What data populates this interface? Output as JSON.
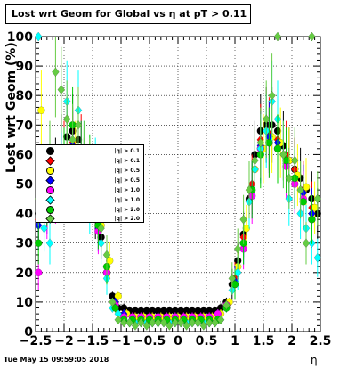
{
  "chart_data": {
    "type": "scatter",
    "title": "Lost wrt Geom for Global vs  η at pT > 0.11",
    "xlabel": "η",
    "ylabel": "Lost wrt Geom (%)",
    "xlim": [
      -2.5,
      2.5
    ],
    "ylim": [
      0,
      100
    ],
    "x_ticks": [
      "−2.5",
      "−2",
      "−1.5",
      "−1",
      "−0.5",
      "0",
      "0.5",
      "1",
      "1.5",
      "2",
      "2.5"
    ],
    "y_ticks": [
      "0",
      "10",
      "20",
      "30",
      "40",
      "50",
      "60",
      "70",
      "80",
      "90",
      "100"
    ],
    "grid": true,
    "legend_position": "left-middle",
    "series": [
      {
        "name": "|q| > 0.1",
        "color": "#000000",
        "x": [
          -2.45,
          -2.35,
          -2.25,
          -2.15,
          -2.05,
          -1.95,
          -1.85,
          -1.75,
          -1.65,
          -1.55,
          -1.45,
          -1.35,
          -1.25,
          -1.15,
          -1.05,
          -0.95,
          -0.85,
          -0.75,
          -0.65,
          -0.55,
          -0.45,
          -0.35,
          -0.25,
          -0.15,
          -0.05,
          0.05,
          0.15,
          0.25,
          0.35,
          0.45,
          0.55,
          0.65,
          0.75,
          0.85,
          0.95,
          1.05,
          1.15,
          1.25,
          1.35,
          1.45,
          1.55,
          1.65,
          1.75,
          1.85,
          1.95,
          2.05,
          2.15,
          2.25,
          2.35,
          2.45
        ],
        "y": [
          40,
          45,
          50,
          55,
          62,
          66,
          68,
          65,
          55,
          48,
          40,
          32,
          20,
          12,
          8,
          8,
          7,
          7,
          7,
          7,
          7,
          7,
          7,
          7,
          7,
          7,
          7,
          7,
          7,
          7,
          7,
          7,
          8,
          10,
          16,
          24,
          33,
          45,
          60,
          68,
          70,
          70,
          68,
          63,
          58,
          55,
          52,
          48,
          45,
          40
        ]
      },
      {
        "name": "|q| > 0.1",
        "color": "#ff0000",
        "x": [
          -2.45,
          -2.3,
          -2.15,
          -2.0,
          -1.85,
          -1.7,
          -1.55,
          -1.4,
          -1.25,
          -1.1,
          -0.95,
          -0.8,
          -0.65,
          -0.5,
          -0.35,
          -0.2,
          -0.05,
          0.1,
          0.25,
          0.4,
          0.55,
          0.7,
          0.85,
          1.0,
          1.15,
          1.3,
          1.45,
          1.6,
          1.75,
          1.9,
          2.05,
          2.2,
          2.35
        ],
        "y": [
          38,
          44,
          52,
          60,
          64,
          62,
          50,
          38,
          22,
          10,
          6,
          5,
          5,
          5,
          5,
          5,
          5,
          5,
          5,
          5,
          5,
          6,
          9,
          18,
          32,
          50,
          65,
          67,
          65,
          60,
          55,
          48,
          42
        ]
      },
      {
        "name": "|q| > 0.5",
        "color": "#ffff00",
        "x": [
          -2.4,
          -2.25,
          -2.1,
          -1.95,
          -1.8,
          -1.65,
          -1.5,
          -1.35,
          -1.2,
          -1.05,
          -0.9,
          -0.75,
          -0.6,
          -0.45,
          -0.3,
          -0.15,
          0.0,
          0.15,
          0.3,
          0.45,
          0.6,
          0.75,
          0.9,
          1.05,
          1.2,
          1.35,
          1.5,
          1.65,
          1.8,
          1.95,
          2.1,
          2.25,
          2.4
        ],
        "y": [
          75,
          55,
          50,
          62,
          60,
          58,
          52,
          36,
          24,
          12,
          6,
          5,
          5,
          5,
          5,
          5,
          5,
          5,
          5,
          5,
          5,
          6,
          10,
          22,
          35,
          55,
          62,
          66,
          64,
          58,
          53,
          49,
          42
        ]
      },
      {
        "name": "|q| > 0.5",
        "color": "#0000ff",
        "x": [
          -2.45,
          -2.3,
          -2.15,
          -2.0,
          -1.85,
          -1.7,
          -1.55,
          -1.4,
          -1.25,
          -1.1,
          -0.95,
          -0.8,
          -0.65,
          -0.5,
          -0.35,
          -0.2,
          -0.05,
          0.1,
          0.25,
          0.4,
          0.55,
          0.7,
          0.85,
          1.0,
          1.15,
          1.3,
          1.45,
          1.6,
          1.75,
          1.9,
          2.05,
          2.2,
          2.35
        ],
        "y": [
          36,
          42,
          48,
          56,
          63,
          60,
          50,
          35,
          20,
          10,
          6,
          5,
          5,
          5,
          5,
          5,
          5,
          5,
          5,
          5,
          5,
          6,
          9,
          17,
          30,
          48,
          63,
          66,
          64,
          57,
          52,
          47,
          40
        ]
      },
      {
        "name": "|q| > 1.0",
        "color": "#ff00ff",
        "x": [
          -2.45,
          -2.3,
          -2.15,
          -2.0,
          -1.85,
          -1.7,
          -1.55,
          -1.4,
          -1.25,
          -1.1,
          -0.95,
          -0.8,
          -0.65,
          -0.5,
          -0.35,
          -0.2,
          -0.05,
          0.1,
          0.25,
          0.4,
          0.55,
          0.7,
          0.85,
          1.0,
          1.15,
          1.3,
          1.45,
          1.6,
          1.75,
          1.9,
          2.05,
          2.2,
          2.35
        ],
        "y": [
          20,
          40,
          46,
          58,
          62,
          60,
          48,
          34,
          20,
          9,
          5,
          5,
          5,
          5,
          5,
          5,
          5,
          5,
          5,
          5,
          5,
          6,
          9,
          16,
          28,
          46,
          62,
          64,
          62,
          56,
          50,
          45,
          38
        ]
      },
      {
        "name": "|q| > 1.0",
        "color": "#00ffff",
        "x": [
          -2.45,
          -2.35,
          -2.25,
          -2.15,
          -2.05,
          -1.95,
          -1.85,
          -1.75,
          -1.65,
          -1.55,
          -1.45,
          -1.35,
          -1.25,
          -1.15,
          -1.05,
          -0.95,
          -0.85,
          -0.75,
          -0.65,
          -0.55,
          -0.45,
          -0.35,
          -0.25,
          -0.15,
          -0.05,
          0.05,
          0.15,
          0.25,
          0.35,
          0.45,
          0.55,
          0.65,
          0.75,
          0.85,
          0.95,
          1.05,
          1.15,
          1.25,
          1.35,
          1.45,
          1.55,
          1.65,
          1.75,
          1.85,
          1.95,
          2.05,
          2.15,
          2.25,
          2.35,
          2.45
        ],
        "y": [
          100,
          35,
          30,
          50,
          58,
          78,
          52,
          75,
          60,
          42,
          55,
          30,
          18,
          8,
          6,
          4,
          3,
          3,
          3,
          3,
          3,
          3,
          3,
          3,
          3,
          3,
          3,
          3,
          3,
          3,
          3,
          3,
          4,
          8,
          14,
          20,
          30,
          44,
          55,
          62,
          68,
          78,
          72,
          60,
          45,
          52,
          40,
          35,
          30,
          25
        ]
      },
      {
        "name": "|q| > 2.0",
        "color": "#00cc00",
        "x": [
          -2.45,
          -2.3,
          -2.15,
          -2.0,
          -1.85,
          -1.7,
          -1.55,
          -1.4,
          -1.25,
          -1.1,
          -0.95,
          -0.8,
          -0.65,
          -0.5,
          -0.35,
          -0.2,
          -0.05,
          0.1,
          0.25,
          0.4,
          0.55,
          0.7,
          0.85,
          1.0,
          1.15,
          1.3,
          1.45,
          1.6,
          1.75,
          1.9,
          2.05,
          2.2,
          2.35
        ],
        "y": [
          30,
          45,
          50,
          58,
          70,
          60,
          56,
          36,
          22,
          8,
          4,
          4,
          4,
          4,
          4,
          4,
          4,
          4,
          4,
          4,
          4,
          4,
          8,
          16,
          30,
          48,
          60,
          64,
          62,
          58,
          52,
          44,
          38
        ]
      },
      {
        "name": "|q| > 2.0",
        "color": "#66cc44",
        "x": [
          -2.45,
          -2.35,
          -2.25,
          -2.15,
          -2.05,
          -1.95,
          -1.85,
          -1.75,
          -1.65,
          -1.55,
          -1.45,
          -1.35,
          -1.25,
          -1.15,
          -1.05,
          -0.95,
          -0.85,
          -0.75,
          -0.65,
          -0.55,
          -0.45,
          -0.35,
          -0.25,
          -0.15,
          -0.05,
          0.05,
          0.15,
          0.25,
          0.35,
          0.45,
          0.55,
          0.65,
          0.75,
          0.85,
          0.95,
          1.05,
          1.15,
          1.25,
          1.35,
          1.45,
          1.55,
          1.65,
          1.75,
          1.85,
          1.95,
          2.05,
          2.15,
          2.25,
          2.35,
          2.45
        ],
        "y": [
          45,
          52,
          60,
          88,
          82,
          72,
          65,
          70,
          60,
          55,
          50,
          35,
          26,
          10,
          4,
          3,
          3,
          2,
          3,
          2,
          3,
          3,
          3,
          2,
          3,
          3,
          2,
          3,
          3,
          2,
          3,
          3,
          4,
          9,
          18,
          28,
          38,
          48,
          58,
          64,
          72,
          80,
          100,
          60,
          52,
          58,
          48,
          30,
          100,
          45
        ]
      }
    ]
  },
  "datestamp": "Tue May 15 09:59:05 2018",
  "legend": {
    "entries": [
      {
        "label": "|q| > 0.1",
        "color": "#000000"
      },
      {
        "label": "|q| > 0.1",
        "color": "#ff0000"
      },
      {
        "label": "|q| > 0.5",
        "color": "#ffff00"
      },
      {
        "label": "|q| > 0.5",
        "color": "#0000ff"
      },
      {
        "label": "|q| > 1.0",
        "color": "#ff00ff"
      },
      {
        "label": "|q| > 1.0",
        "color": "#00ffff"
      },
      {
        "label": "|q| > 2.0",
        "color": "#00cc00"
      },
      {
        "label": "|q| > 2.0",
        "color": "#66cc44"
      }
    ]
  }
}
